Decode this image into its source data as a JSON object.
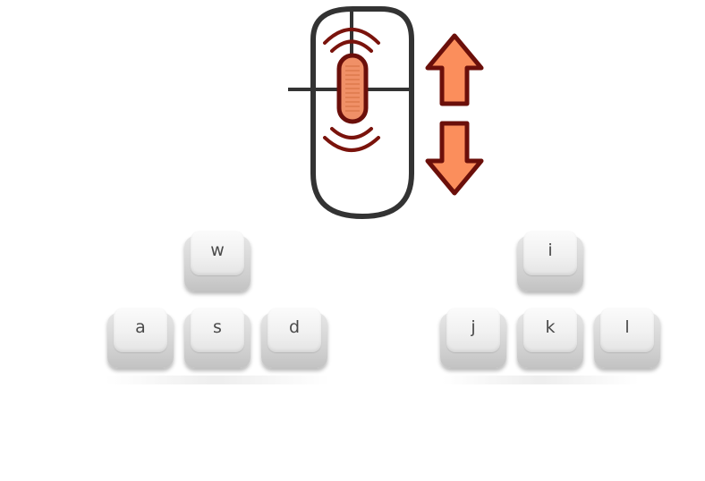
{
  "colors": {
    "mouse_outline": "#333333",
    "wheel_outline": "#6b0f0a",
    "wheel_fill": "#f09067",
    "scroll_waves": "#7a130c",
    "arrow_outline": "#6b0f0a",
    "arrow_fill": "#fb8e5c"
  },
  "icons": {
    "mouse": "mouse-icon",
    "scroll_up": "arrow-up-icon",
    "scroll_down": "arrow-down-icon"
  },
  "left_keys": {
    "top": "w",
    "left": "a",
    "middle": "s",
    "right": "d"
  },
  "right_keys": {
    "top": "i",
    "left": "j",
    "middle": "k",
    "right": "l"
  }
}
